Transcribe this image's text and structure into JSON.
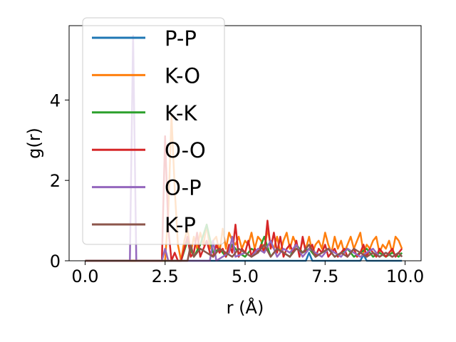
{
  "chart_data": {
    "type": "line",
    "title": "",
    "xlabel": "r (Å)",
    "ylabel": "g(r)",
    "xlim": [
      -0.5,
      10.5
    ],
    "ylim": [
      0,
      5.85
    ],
    "xticks": [
      0.0,
      2.5,
      5.0,
      7.5,
      10.0
    ],
    "xtick_labels": [
      "0.0",
      "2.5",
      "5.0",
      "7.5",
      "10.0"
    ],
    "yticks": [
      0,
      2,
      4
    ],
    "ytick_labels": [
      "0",
      "2",
      "4"
    ],
    "grid": false,
    "legend_position": "upper-left",
    "series": [
      {
        "name": "P-P",
        "color": "#1f77b4",
        "x": [
          0.0,
          1.0,
          2.0,
          3.0,
          4.0,
          5.0,
          6.0,
          6.9,
          7.0,
          7.1,
          8.0,
          8.6,
          8.7,
          8.8,
          9.0,
          9.5,
          9.9
        ],
        "y": [
          0.0,
          0.0,
          0.0,
          0.0,
          0.0,
          0.0,
          0.0,
          0.0,
          0.2,
          0.0,
          0.0,
          0.0,
          0.15,
          0.0,
          0.0,
          0.0,
          0.0
        ]
      },
      {
        "name": "K-O",
        "color": "#ff7f0e",
        "x": [
          0.0,
          2.5,
          2.6,
          2.7,
          2.8,
          2.9,
          3.0,
          3.1,
          3.2,
          3.3,
          3.4,
          3.5,
          3.6,
          3.7,
          3.8,
          3.9,
          4.0,
          4.1,
          4.2,
          4.3,
          4.4,
          4.5,
          4.6,
          4.7,
          4.8,
          4.9,
          5.0,
          5.1,
          5.2,
          5.3,
          5.4,
          5.5,
          5.6,
          5.7,
          5.8,
          5.9,
          6.0,
          6.1,
          6.2,
          6.3,
          6.4,
          6.5,
          6.6,
          6.7,
          6.8,
          6.9,
          7.0,
          7.1,
          7.2,
          7.3,
          7.4,
          7.5,
          7.6,
          7.7,
          7.8,
          7.9,
          8.0,
          8.1,
          8.2,
          8.3,
          8.4,
          8.5,
          8.6,
          8.7,
          8.8,
          8.9,
          9.0,
          9.1,
          9.2,
          9.3,
          9.4,
          9.5,
          9.6,
          9.7,
          9.8,
          9.9
        ],
        "y": [
          0.0,
          0.0,
          1.2,
          3.6,
          1.8,
          0.4,
          0.0,
          0.5,
          0.8,
          0.2,
          0.6,
          0.3,
          0.7,
          0.4,
          0.9,
          0.3,
          0.5,
          0.6,
          0.2,
          0.8,
          0.3,
          0.7,
          0.5,
          0.4,
          0.6,
          0.3,
          0.5,
          0.4,
          0.7,
          0.3,
          0.6,
          0.5,
          0.2,
          0.8,
          0.4,
          0.3,
          0.6,
          0.2,
          0.5,
          0.7,
          0.3,
          0.6,
          0.4,
          0.2,
          0.5,
          0.3,
          0.6,
          0.2,
          0.4,
          0.5,
          0.3,
          0.7,
          0.4,
          0.2,
          0.6,
          0.3,
          0.5,
          0.2,
          0.4,
          0.6,
          0.3,
          0.5,
          0.7,
          0.2,
          0.4,
          0.3,
          0.5,
          0.6,
          0.2,
          0.4,
          0.3,
          0.5,
          0.2,
          0.6,
          0.5,
          0.3
        ]
      },
      {
        "name": "K-K",
        "color": "#2ca02c",
        "x": [
          0.0,
          3.0,
          3.2,
          3.4,
          3.6,
          3.8,
          4.0,
          4.2,
          4.4,
          4.6,
          4.8,
          5.0,
          5.2,
          5.4,
          5.6,
          5.8,
          6.0,
          6.2,
          6.4,
          6.6,
          6.8,
          7.0,
          7.2,
          7.4,
          7.6,
          7.8,
          8.0,
          8.2,
          8.4,
          8.6,
          8.8,
          9.0,
          9.2,
          9.4,
          9.6,
          9.8,
          9.9
        ],
        "y": [
          0.0,
          0.0,
          0.5,
          0.1,
          0.4,
          0.9,
          0.2,
          0.3,
          0.1,
          0.4,
          0.2,
          0.1,
          0.3,
          0.2,
          0.6,
          0.1,
          0.3,
          0.2,
          0.1,
          0.4,
          0.2,
          0.3,
          0.1,
          0.2,
          0.3,
          0.1,
          0.2,
          0.3,
          0.1,
          0.2,
          0.3,
          0.1,
          0.2,
          0.1,
          0.2,
          0.1,
          0.2
        ]
      },
      {
        "name": "O-O",
        "color": "#d62728",
        "x": [
          0.0,
          2.4,
          2.5,
          2.6,
          2.7,
          2.8,
          2.9,
          3.0,
          3.1,
          3.2,
          3.3,
          3.4,
          3.5,
          3.6,
          3.7,
          3.8,
          3.9,
          4.0,
          4.1,
          4.2,
          4.3,
          4.4,
          4.5,
          4.6,
          4.7,
          4.8,
          4.9,
          5.0,
          5.1,
          5.2,
          5.3,
          5.4,
          5.5,
          5.6,
          5.7,
          5.8,
          5.9,
          6.0,
          6.1,
          6.2,
          6.3,
          6.4,
          6.5,
          6.6,
          6.7,
          6.8,
          6.9,
          7.0,
          7.1,
          7.2,
          7.3,
          7.4,
          7.5,
          7.6,
          7.7,
          7.8,
          7.9,
          8.0,
          8.1,
          8.2,
          8.3,
          8.4,
          8.5,
          8.6,
          8.7,
          8.8,
          8.9,
          9.0,
          9.1,
          9.2,
          9.3,
          9.4,
          9.5,
          9.6,
          9.7,
          9.8,
          9.9
        ],
        "y": [
          0.0,
          0.0,
          3.1,
          0.8,
          0.0,
          0.2,
          0.0,
          0.0,
          0.3,
          0.6,
          0.1,
          0.2,
          0.7,
          0.1,
          0.3,
          0.5,
          0.2,
          0.1,
          0.4,
          0.2,
          0.3,
          0.1,
          0.4,
          0.2,
          0.9,
          0.1,
          0.3,
          0.2,
          0.5,
          0.1,
          0.3,
          0.2,
          0.4,
          0.2,
          1.0,
          0.3,
          0.7,
          0.2,
          0.6,
          0.1,
          0.3,
          0.4,
          0.2,
          0.5,
          0.1,
          0.6,
          0.2,
          0.3,
          0.4,
          0.1,
          0.3,
          0.2,
          0.4,
          0.1,
          0.2,
          0.3,
          0.1,
          0.2,
          0.3,
          0.1,
          0.2,
          0.3,
          0.1,
          0.2,
          0.4,
          0.1,
          0.3,
          0.2,
          0.1,
          0.3,
          0.2,
          0.1,
          0.2,
          0.3,
          0.1,
          0.2,
          0.3
        ]
      },
      {
        "name": "O-P",
        "color": "#9467bd",
        "x": [
          0.0,
          1.4,
          1.5,
          1.6,
          2.0,
          2.4,
          2.5,
          2.6,
          3.0,
          3.5,
          3.9,
          4.0,
          4.1,
          4.5,
          4.6,
          4.7,
          5.0,
          5.2,
          5.4,
          5.6,
          5.8,
          6.0,
          6.2,
          6.4,
          6.6,
          6.8,
          7.0,
          7.2,
          7.4,
          7.6,
          7.8,
          8.0,
          8.2,
          8.4,
          8.6,
          8.8,
          9.0,
          9.2,
          9.4,
          9.6,
          9.8,
          9.9
        ],
        "y": [
          0.0,
          0.0,
          5.6,
          0.0,
          0.0,
          0.0,
          0.3,
          0.0,
          0.0,
          0.0,
          0.0,
          0.5,
          0.0,
          0.2,
          0.6,
          0.1,
          0.2,
          0.1,
          0.3,
          0.2,
          0.5,
          0.1,
          0.3,
          0.2,
          0.4,
          0.1,
          0.3,
          0.2,
          0.1,
          0.3,
          0.2,
          0.1,
          0.3,
          0.2,
          0.1,
          0.2,
          0.3,
          0.1,
          0.2,
          0.1,
          0.2,
          0.1
        ]
      },
      {
        "name": "K-P",
        "color": "#8c564b",
        "x": [
          0.0,
          3.2,
          3.3,
          3.4,
          3.6,
          3.8,
          4.0,
          4.2,
          4.4,
          4.6,
          4.8,
          5.0,
          5.2,
          5.4,
          5.6,
          5.8,
          6.0,
          6.2,
          6.4,
          6.6,
          6.8,
          7.0,
          7.2,
          7.4,
          7.6,
          7.8,
          8.0,
          8.2,
          8.4,
          8.6,
          8.8,
          9.0,
          9.2,
          9.4,
          9.6,
          9.8,
          9.9
        ],
        "y": [
          0.0,
          0.0,
          0.4,
          0.1,
          0.3,
          0.2,
          0.1,
          0.3,
          0.2,
          0.1,
          0.3,
          0.2,
          0.1,
          0.2,
          0.4,
          0.1,
          0.3,
          0.2,
          0.1,
          0.3,
          0.2,
          0.4,
          0.1,
          0.2,
          0.3,
          0.1,
          0.2,
          0.1,
          0.3,
          0.2,
          0.1,
          0.2,
          0.1,
          0.2,
          0.1,
          0.2,
          0.1
        ]
      }
    ]
  }
}
